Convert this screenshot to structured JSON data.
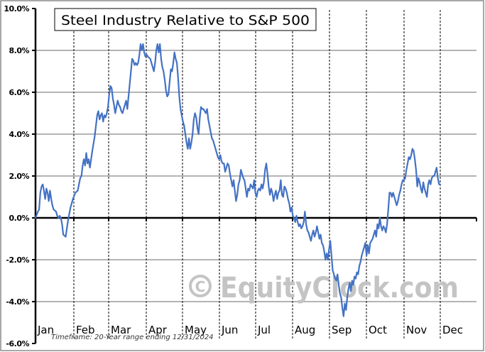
{
  "chart_data": {
    "type": "line",
    "title": "Steel Industry Relative to S&P 500",
    "xlabel": "",
    "ylabel": "",
    "ylim": [
      -6,
      10
    ],
    "yticks": [
      10,
      8,
      6,
      4,
      2,
      0,
      -2,
      -4,
      -6
    ],
    "ytick_labels": [
      "10.0%",
      "8.0%",
      "6.0%",
      "4.0%",
      "2.0%",
      "0.0%",
      "-2.0%",
      "-4.0%",
      "-6.0%"
    ],
    "months": [
      "Jan",
      "Feb",
      "Mar",
      "Apr",
      "May",
      "Jun",
      "Jul",
      "Aug",
      "Sep",
      "Oct",
      "Nov",
      "Dec"
    ],
    "grid": "horizontal solid, monthly vertical dashed",
    "annotation": "Timeframe: 20-Year range ending 12/31/2024",
    "watermark": "© EquityClock.com",
    "line_color": "#4472C4",
    "series": [
      {
        "name": "Steel Industry Relative to S&P 500",
        "x_unit": "day of year",
        "points": [
          [
            1,
            0.0
          ],
          [
            3,
            0.3
          ],
          [
            4,
            0.4
          ],
          [
            5,
            1.2
          ],
          [
            6,
            1.5
          ],
          [
            7,
            1.6
          ],
          [
            8,
            1.3
          ],
          [
            9,
            0.9
          ],
          [
            10,
            1.4
          ],
          [
            11,
            1.2
          ],
          [
            12,
            0.8
          ],
          [
            13,
            1.3
          ],
          [
            14,
            0.9
          ],
          [
            15,
            0.6
          ],
          [
            16,
            0.4
          ],
          [
            18,
            0.3
          ],
          [
            19,
            0.1
          ],
          [
            20,
            0.0
          ],
          [
            21,
            0.1
          ],
          [
            22,
            0.0
          ],
          [
            23,
            -0.3
          ],
          [
            24,
            -0.8
          ],
          [
            26,
            -0.9
          ],
          [
            27,
            -0.5
          ],
          [
            28,
            -0.1
          ],
          [
            30,
            0.5
          ],
          [
            32,
            0.9
          ],
          [
            34,
            1.2
          ],
          [
            36,
            1.3
          ],
          [
            37,
            1.6
          ],
          [
            38,
            1.9
          ],
          [
            39,
            2.0
          ],
          [
            40,
            2.5
          ],
          [
            41,
            2.8
          ],
          [
            42,
            2.5
          ],
          [
            43,
            3.1
          ],
          [
            44,
            2.6
          ],
          [
            45,
            2.8
          ],
          [
            46,
            2.4
          ],
          [
            48,
            3.2
          ],
          [
            50,
            3.9
          ],
          [
            51,
            4.4
          ],
          [
            52,
            4.9
          ],
          [
            53,
            5.1
          ],
          [
            54,
            4.7
          ],
          [
            55,
            4.9
          ],
          [
            56,
            5.0
          ],
          [
            57,
            4.6
          ],
          [
            58,
            4.9
          ],
          [
            59,
            4.8
          ],
          [
            60,
            5.0
          ],
          [
            61,
            5.3
          ],
          [
            62,
            5.9
          ],
          [
            63,
            6.3
          ],
          [
            64,
            6.2
          ],
          [
            65,
            5.7
          ],
          [
            66,
            5.4
          ],
          [
            67,
            5.0
          ],
          [
            68,
            5.3
          ],
          [
            69,
            5.6
          ],
          [
            70,
            5.4
          ],
          [
            71,
            5.3
          ],
          [
            72,
            5.1
          ],
          [
            73,
            5.0
          ],
          [
            74,
            5.2
          ],
          [
            75,
            5.4
          ],
          [
            76,
            5.6
          ],
          [
            77,
            5.2
          ],
          [
            78,
            5.8
          ],
          [
            79,
            6.4
          ],
          [
            80,
            7.0
          ],
          [
            81,
            7.6
          ],
          [
            82,
            7.5
          ],
          [
            83,
            7.3
          ],
          [
            84,
            7.4
          ],
          [
            85,
            7.3
          ],
          [
            86,
            7.4
          ],
          [
            87,
            7.8
          ],
          [
            88,
            8.3
          ],
          [
            89,
            8.0
          ],
          [
            90,
            8.3
          ],
          [
            91,
            7.9
          ],
          [
            92,
            7.7
          ],
          [
            93,
            7.8
          ],
          [
            94,
            7.7
          ],
          [
            96,
            7.6
          ],
          [
            97,
            7.4
          ],
          [
            98,
            7.2
          ],
          [
            99,
            7.0
          ],
          [
            100,
            7.4
          ],
          [
            101,
            8.0
          ],
          [
            102,
            8.3
          ],
          [
            103,
            7.9
          ],
          [
            104,
            8.3
          ],
          [
            105,
            7.6
          ],
          [
            106,
            7.2
          ],
          [
            107,
            7.0
          ],
          [
            108,
            6.6
          ],
          [
            109,
            6.1
          ],
          [
            110,
            5.8
          ],
          [
            111,
            5.9
          ],
          [
            112,
            6.5
          ],
          [
            113,
            7.1
          ],
          [
            114,
            7.0
          ],
          [
            115,
            7.4
          ],
          [
            116,
            7.9
          ],
          [
            117,
            7.6
          ],
          [
            118,
            7.4
          ],
          [
            119,
            6.7
          ],
          [
            120,
            5.8
          ],
          [
            121,
            5.2
          ],
          [
            122,
            4.9
          ],
          [
            123,
            4.6
          ],
          [
            124,
            4.4
          ],
          [
            125,
            4.0
          ],
          [
            126,
            3.6
          ],
          [
            127,
            3.3
          ],
          [
            128,
            3.8
          ],
          [
            129,
            3.3
          ],
          [
            130,
            3.6
          ],
          [
            131,
            4.0
          ],
          [
            132,
            4.7
          ],
          [
            133,
            5.0
          ],
          [
            134,
            4.8
          ],
          [
            135,
            4.3
          ],
          [
            136,
            4.0
          ],
          [
            137,
            4.8
          ],
          [
            138,
            5.3
          ],
          [
            139,
            5.2
          ],
          [
            140,
            5.2
          ],
          [
            141,
            5.1
          ],
          [
            142,
            5.0
          ],
          [
            143,
            5.2
          ],
          [
            144,
            4.7
          ],
          [
            145,
            4.4
          ],
          [
            146,
            4.1
          ],
          [
            147,
            3.8
          ],
          [
            148,
            3.7
          ],
          [
            149,
            3.5
          ],
          [
            150,
            3.3
          ],
          [
            151,
            3.1
          ],
          [
            152,
            2.9
          ],
          [
            153,
            2.8
          ],
          [
            154,
            3.0
          ],
          [
            155,
            2.7
          ],
          [
            156,
            2.6
          ],
          [
            157,
            2.6
          ],
          [
            158,
            2.2
          ],
          [
            159,
            2.4
          ],
          [
            160,
            2.6
          ],
          [
            161,
            2.5
          ],
          [
            162,
            2.1
          ],
          [
            163,
            1.8
          ],
          [
            164,
            1.5
          ],
          [
            165,
            1.8
          ],
          [
            166,
            1.3
          ],
          [
            167,
            0.8
          ],
          [
            168,
            1.1
          ],
          [
            169,
            1.6
          ],
          [
            170,
            1.8
          ],
          [
            171,
            2.3
          ],
          [
            172,
            2.1
          ],
          [
            173,
            1.9
          ],
          [
            174,
            1.8
          ],
          [
            175,
            1.4
          ],
          [
            176,
            1.0
          ],
          [
            177,
            1.4
          ],
          [
            178,
            1.3
          ],
          [
            179,
            1.6
          ],
          [
            180,
            1.5
          ],
          [
            181,
            1.4
          ],
          [
            182,
            1.8
          ],
          [
            183,
            1.2
          ],
          [
            184,
            1.0
          ],
          [
            185,
            1.3
          ],
          [
            186,
            1.4
          ],
          [
            187,
            1.3
          ],
          [
            188,
            1.6
          ],
          [
            189,
            1.4
          ],
          [
            190,
            1.7
          ],
          [
            191,
            2.3
          ],
          [
            192,
            2.6
          ],
          [
            193,
            2.1
          ],
          [
            194,
            1.5
          ],
          [
            195,
            1.1
          ],
          [
            196,
            1.4
          ],
          [
            197,
            1.2
          ],
          [
            198,
            0.8
          ],
          [
            199,
            1.1
          ],
          [
            200,
            1.3
          ],
          [
            201,
            0.9
          ],
          [
            202,
            1.2
          ],
          [
            203,
            1.3
          ],
          [
            204,
            1.8
          ],
          [
            205,
            1.1
          ],
          [
            206,
            1.0
          ],
          [
            207,
            1.5
          ],
          [
            208,
            1.4
          ],
          [
            209,
            1.2
          ],
          [
            210,
            0.9
          ],
          [
            211,
            0.7
          ],
          [
            212,
            0.3
          ],
          [
            213,
            0.5
          ],
          [
            214,
            0.1
          ],
          [
            215,
            0.0
          ],
          [
            216,
            -0.2
          ],
          [
            217,
            0.1
          ],
          [
            218,
            -0.2
          ],
          [
            219,
            -0.4
          ],
          [
            220,
            -0.3
          ],
          [
            221,
            -0.5
          ],
          [
            222,
            -0.4
          ],
          [
            223,
            -0.2
          ],
          [
            224,
            0.3
          ],
          [
            225,
            -0.3
          ],
          [
            226,
            -0.6
          ],
          [
            227,
            -0.7
          ],
          [
            228,
            -0.9
          ],
          [
            229,
            -1.1
          ],
          [
            230,
            -0.8
          ],
          [
            231,
            -0.6
          ],
          [
            232,
            -0.9
          ],
          [
            233,
            -0.7
          ],
          [
            234,
            -0.4
          ],
          [
            235,
            -0.7
          ],
          [
            236,
            -1.0
          ],
          [
            237,
            -0.8
          ],
          [
            238,
            -1.2
          ],
          [
            239,
            -1.3
          ],
          [
            240,
            -1.6
          ],
          [
            241,
            -2.0
          ],
          [
            242,
            -1.7
          ],
          [
            243,
            -2.0
          ],
          [
            244,
            -1.5
          ],
          [
            245,
            -1.1
          ],
          [
            246,
            -1.8
          ],
          [
            247,
            -2.5
          ],
          [
            248,
            -2.7
          ],
          [
            249,
            -2.9
          ],
          [
            250,
            -3.0
          ],
          [
            251,
            -2.7
          ],
          [
            252,
            -3.2
          ],
          [
            253,
            -3.6
          ],
          [
            254,
            -3.8
          ],
          [
            255,
            -4.3
          ],
          [
            256,
            -4.7
          ],
          [
            257,
            -4.1
          ],
          [
            258,
            -4.4
          ],
          [
            259,
            -3.8
          ],
          [
            260,
            -3.4
          ],
          [
            261,
            -3.1
          ],
          [
            262,
            -3.5
          ],
          [
            263,
            -3.0
          ],
          [
            264,
            -3.2
          ],
          [
            265,
            -2.8
          ],
          [
            266,
            -2.9
          ],
          [
            267,
            -2.6
          ],
          [
            268,
            -2.7
          ],
          [
            269,
            -2.3
          ],
          [
            270,
            -2.1
          ],
          [
            271,
            -1.8
          ],
          [
            272,
            -1.6
          ],
          [
            273,
            -1.4
          ],
          [
            274,
            -1.2
          ],
          [
            275,
            -1.8
          ],
          [
            276,
            -1.3
          ],
          [
            277,
            -1.7
          ],
          [
            278,
            -1.2
          ],
          [
            279,
            -1.1
          ],
          [
            280,
            -1.0
          ],
          [
            281,
            -0.8
          ],
          [
            282,
            -0.6
          ],
          [
            283,
            -0.9
          ],
          [
            284,
            -0.3
          ],
          [
            285,
            -0.5
          ],
          [
            286,
            0.0
          ],
          [
            287,
            -0.4
          ],
          [
            288,
            -0.6
          ],
          [
            289,
            -0.4
          ],
          [
            290,
            -0.5
          ],
          [
            291,
            -0.7
          ],
          [
            292,
            -0.3
          ],
          [
            293,
            0.4
          ],
          [
            294,
            1.2
          ],
          [
            295,
            1.2
          ],
          [
            296,
            1.0
          ],
          [
            297,
            1.2
          ],
          [
            298,
            1.0
          ],
          [
            299,
            0.8
          ],
          [
            300,
            0.6
          ],
          [
            301,
            0.8
          ],
          [
            302,
            1.1
          ],
          [
            303,
            1.3
          ],
          [
            304,
            1.6
          ],
          [
            305,
            1.8
          ],
          [
            306,
            1.8
          ],
          [
            307,
            1.9
          ],
          [
            308,
            2.3
          ],
          [
            309,
            2.6
          ],
          [
            310,
            2.9
          ],
          [
            311,
            2.8
          ],
          [
            312,
            3.0
          ],
          [
            313,
            3.3
          ],
          [
            314,
            3.2
          ],
          [
            315,
            2.8
          ],
          [
            316,
            2.3
          ],
          [
            317,
            1.5
          ],
          [
            318,
            1.9
          ],
          [
            319,
            1.7
          ],
          [
            320,
            1.4
          ],
          [
            321,
            1.2
          ],
          [
            322,
            1.7
          ],
          [
            323,
            1.4
          ],
          [
            324,
            1.2
          ],
          [
            325,
            1.0
          ],
          [
            326,
            1.6
          ],
          [
            327,
            1.8
          ],
          [
            328,
            1.6
          ],
          [
            329,
            1.9
          ],
          [
            330,
            2.0
          ],
          [
            331,
            2.0
          ],
          [
            332,
            2.2
          ],
          [
            333,
            2.4
          ],
          [
            334,
            1.9
          ],
          [
            335,
            1.6
          ],
          [
            336,
            1.6
          ]
        ]
      }
    ]
  }
}
